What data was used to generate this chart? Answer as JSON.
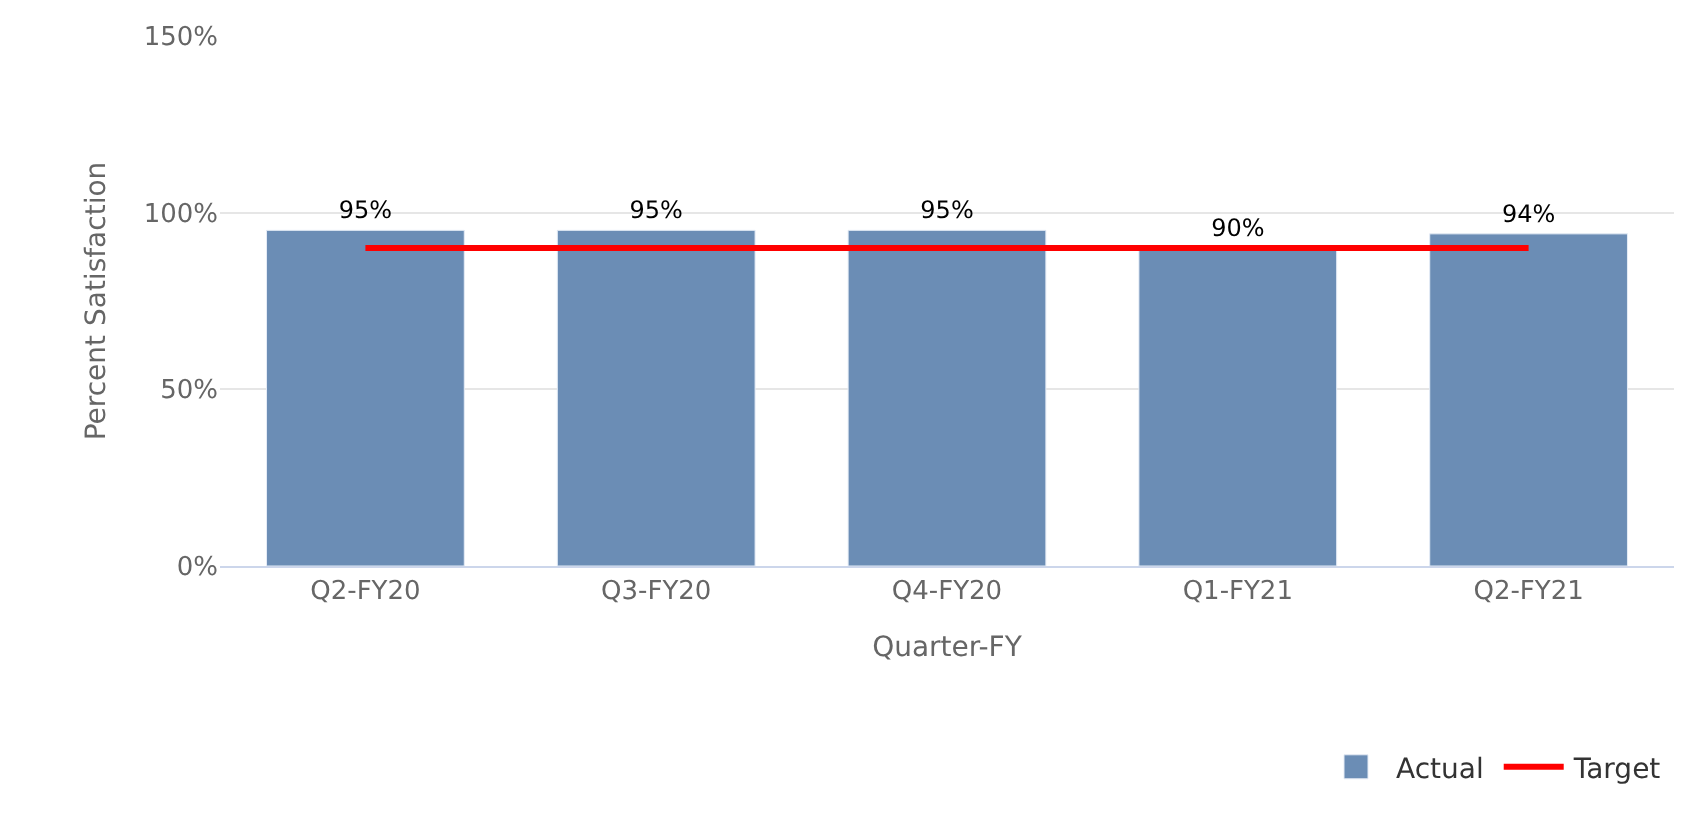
{
  "chart_data": {
    "type": "bar",
    "xlabel": "Quarter-FY",
    "ylabel": "Percent Satisfaction",
    "categories": [
      "Q2-FY20",
      "Q3-FY20",
      "Q4-FY20",
      "Q1-FY21",
      "Q2-FY21"
    ],
    "series": [
      {
        "name": "Actual",
        "color": "#6b8db5",
        "values": [
          95,
          95,
          95,
          90,
          94
        ],
        "value_labels": [
          "95%",
          "95%",
          "95%",
          "90%",
          "94%"
        ]
      },
      {
        "name": "Target",
        "type": "line",
        "color": "#ff0000",
        "values": [
          90,
          90,
          90,
          90,
          90
        ]
      }
    ],
    "ylim": [
      0,
      150
    ],
    "yticks": [
      {
        "value": 0,
        "label": "0%"
      },
      {
        "value": 50,
        "label": "50%"
      },
      {
        "value": 100,
        "label": "100%"
      },
      {
        "value": 150,
        "label": "150%"
      }
    ],
    "grid": "y",
    "legend": "bottom right"
  }
}
